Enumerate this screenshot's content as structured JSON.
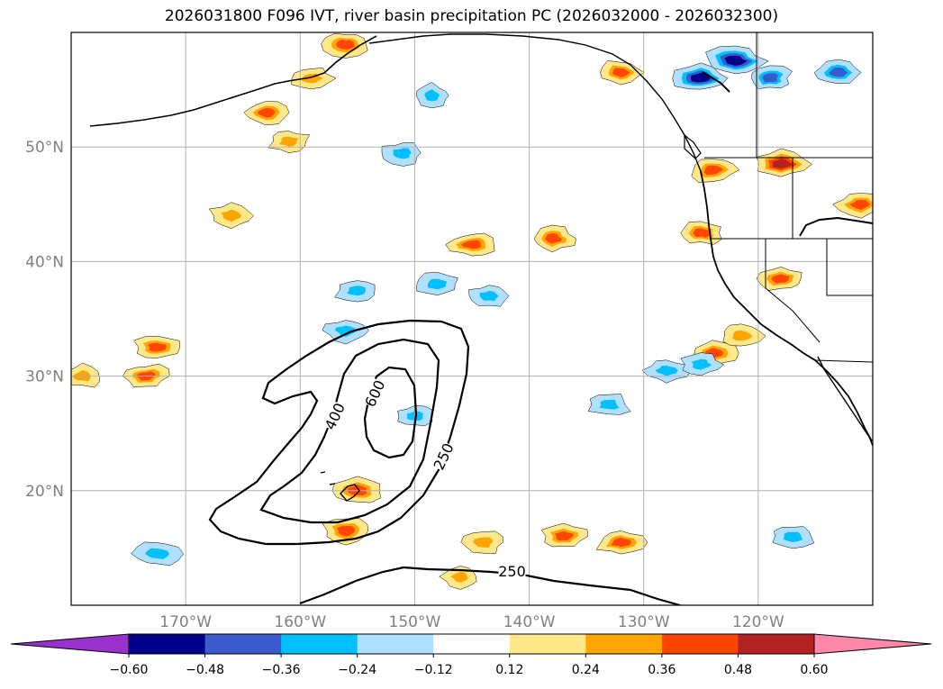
{
  "chart_data": {
    "type": "heatmap",
    "title": "2026031800 F096 IVT, river basin precipitation PC (2026032000 - 2026032300)",
    "extent": {
      "lon": [
        -180,
        -110
      ],
      "lat": [
        10,
        60
      ]
    },
    "lat_ticks": [
      {
        "value": 50,
        "label": "50°N"
      },
      {
        "value": 40,
        "label": "40°N"
      },
      {
        "value": 30,
        "label": "30°N"
      },
      {
        "value": 20,
        "label": "20°N"
      }
    ],
    "lon_ticks": [
      {
        "value": -170,
        "label": "170°W"
      },
      {
        "value": -160,
        "label": "160°W"
      },
      {
        "value": -150,
        "label": "150°W"
      },
      {
        "value": -140,
        "label": "140°W"
      },
      {
        "value": -130,
        "label": "130°W"
      },
      {
        "value": -120,
        "label": "120°W"
      }
    ],
    "grid": true,
    "colorbar": {
      "orientation": "horizontal",
      "extend": "both",
      "under_color": "#9932cc",
      "over_color": "#ff88aa",
      "colors": [
        "#00008b",
        "#3a5bcc",
        "#00bfff",
        "#b0e0ff",
        "#ffffff",
        "#ffe88a",
        "#ffa500",
        "#ff4500",
        "#b22222"
      ],
      "ticks": [
        -0.6,
        -0.48,
        -0.36,
        -0.24,
        -0.12,
        0.12,
        0.24,
        0.36,
        0.48,
        0.6
      ],
      "tick_labels": [
        "−0.60",
        "−0.48",
        "−0.36",
        "−0.24",
        "−0.12",
        "0.12",
        "0.24",
        "0.36",
        "0.48",
        "0.60"
      ]
    },
    "ivt_contours": [
      {
        "level": 250,
        "label": "250"
      },
      {
        "level": 400,
        "label": "400"
      },
      {
        "level": 600,
        "label": "600"
      }
    ],
    "ivt_label_positions": [
      {
        "text": "250",
        "lon": -141.5,
        "lat": 13
      },
      {
        "text": "250",
        "lon": -147.5,
        "lat": 23
      },
      {
        "text": "400",
        "lon": -157,
        "lat": 26.5
      },
      {
        "text": "600",
        "lon": -153.5,
        "lat": 28.5
      }
    ],
    "pc_patches": [
      {
        "lon": -172.5,
        "lat": 32.5,
        "value": 0.4
      },
      {
        "lon": -173.5,
        "lat": 30.0,
        "value": 0.38
      },
      {
        "lon": -179,
        "lat": 30.0,
        "value": 0.3
      },
      {
        "lon": -166,
        "lat": 44.0,
        "value": 0.35
      },
      {
        "lon": -163,
        "lat": 53.0,
        "value": 0.38
      },
      {
        "lon": -159,
        "lat": 56.0,
        "value": 0.3
      },
      {
        "lon": -156,
        "lat": 59.0,
        "value": 0.38
      },
      {
        "lon": -161,
        "lat": 50.5,
        "value": 0.28
      },
      {
        "lon": -145,
        "lat": 41.5,
        "value": 0.38
      },
      {
        "lon": -138,
        "lat": 42.0,
        "value": 0.38
      },
      {
        "lon": -132,
        "lat": 56.5,
        "value": 0.42
      },
      {
        "lon": -137,
        "lat": 16.0,
        "value": 0.4
      },
      {
        "lon": -132,
        "lat": 15.5,
        "value": 0.45
      },
      {
        "lon": -156,
        "lat": 16.5,
        "value": 0.4
      },
      {
        "lon": -155,
        "lat": 20.0,
        "value": 0.38
      },
      {
        "lon": -144,
        "lat": 15.5,
        "value": 0.3
      },
      {
        "lon": -146,
        "lat": 12.5,
        "value": 0.28
      },
      {
        "lon": -118,
        "lat": 48.5,
        "value": 0.5
      },
      {
        "lon": -124,
        "lat": 48.0,
        "value": 0.42
      },
      {
        "lon": -111,
        "lat": 45.0,
        "value": 0.45
      },
      {
        "lon": -125,
        "lat": 42.5,
        "value": 0.36
      },
      {
        "lon": -124,
        "lat": 32.0,
        "value": 0.38
      },
      {
        "lon": -118,
        "lat": 38.5,
        "value": 0.36
      },
      {
        "lon": -121.5,
        "lat": 33.5,
        "value": 0.3
      },
      {
        "lon": -125,
        "lat": 56.0,
        "value": -0.5
      },
      {
        "lon": -122,
        "lat": 57.5,
        "value": -0.6
      },
      {
        "lon": -113,
        "lat": 56.5,
        "value": -0.42
      },
      {
        "lon": -119,
        "lat": 56.0,
        "value": -0.38
      },
      {
        "lon": -151,
        "lat": 49.5,
        "value": -0.32
      },
      {
        "lon": -156,
        "lat": 34.0,
        "value": -0.36
      },
      {
        "lon": -155,
        "lat": 37.5,
        "value": -0.36
      },
      {
        "lon": -148,
        "lat": 38.0,
        "value": -0.34
      },
      {
        "lon": -143.5,
        "lat": 37.0,
        "value": -0.3
      },
      {
        "lon": -128,
        "lat": 30.5,
        "value": -0.36
      },
      {
        "lon": -125,
        "lat": 31.0,
        "value": -0.32
      },
      {
        "lon": -172.5,
        "lat": 14.5,
        "value": -0.36
      },
      {
        "lon": -117,
        "lat": 16.0,
        "value": -0.36
      },
      {
        "lon": -133,
        "lat": 27.5,
        "value": -0.3
      },
      {
        "lon": -148.5,
        "lat": 54.5,
        "value": -0.3
      },
      {
        "lon": -150,
        "lat": 26.5,
        "value": -0.28
      }
    ]
  }
}
